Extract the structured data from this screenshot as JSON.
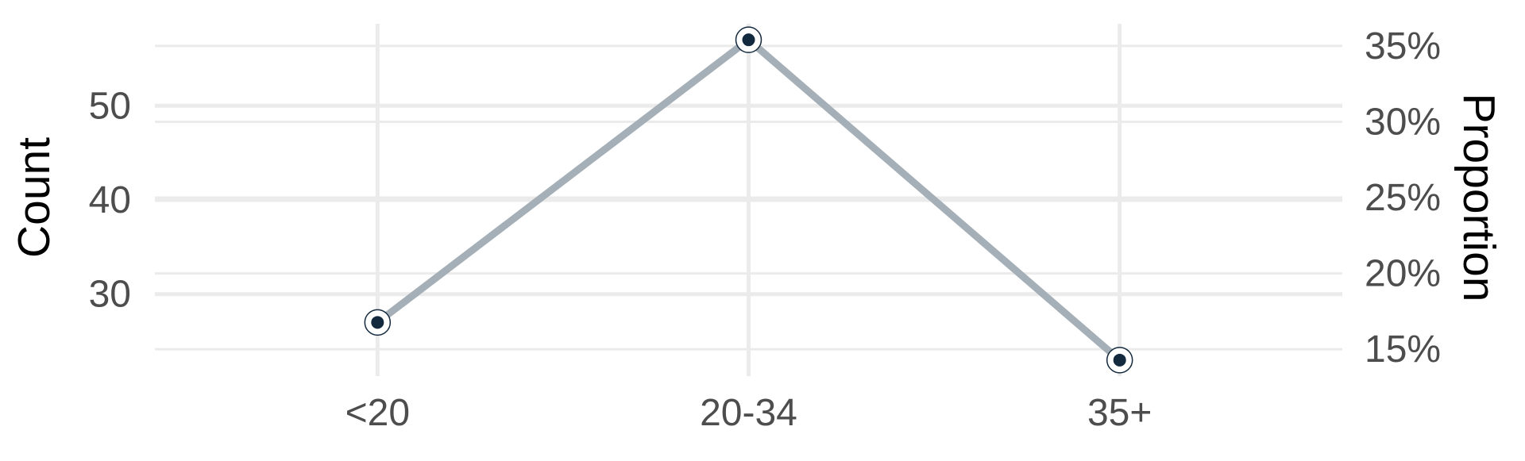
{
  "chart_data": {
    "type": "line",
    "categories": [
      "<20",
      "20-34",
      "35+"
    ],
    "series": [
      {
        "values": [
          27,
          57,
          23
        ]
      }
    ],
    "ylabel": "Count",
    "y2label": "Proportion",
    "ylim": [
      21.3,
      58.7
    ],
    "y_ticks": [
      30,
      40,
      50
    ],
    "y2_ticks": [
      "15%",
      "20%",
      "25%",
      "30%",
      "35%"
    ],
    "y2_tick_values": [
      15,
      20,
      25,
      30,
      35
    ],
    "y2_total": 161,
    "grid": true,
    "colors": {
      "line": "#a5afb7",
      "point": "#13293d",
      "grid": "#ebebeb",
      "tick_text": "#4d4d4d"
    }
  }
}
